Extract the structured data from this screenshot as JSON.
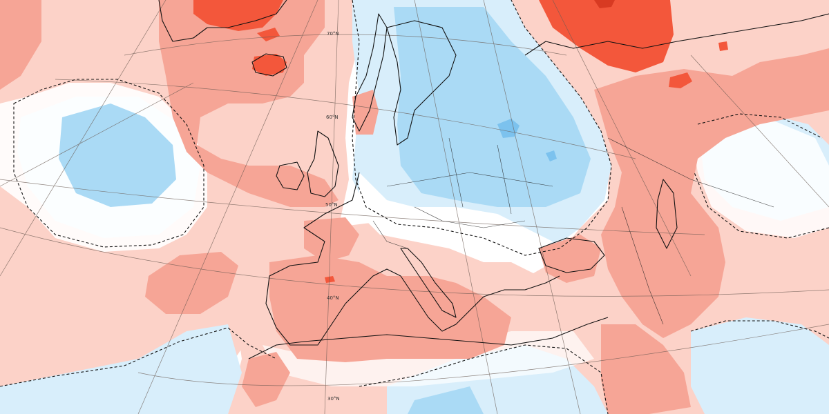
{
  "map": {
    "colors": {
      "background": "#ffffff",
      "warm_light": "#fcd2c8",
      "warm_mid": "#f6a596",
      "warm_strong": "#f3573b",
      "warm_darkest": "#d83a22",
      "cool_light": "#d8eefb",
      "cool_mid": "#aadaf5",
      "cool_strong": "#7cc2ee",
      "graticule": "#6a5a52",
      "coastline": "#111111"
    },
    "latitude_labels": [
      "70°N",
      "60°N",
      "50°N",
      "40°N",
      "30°N"
    ]
  }
}
